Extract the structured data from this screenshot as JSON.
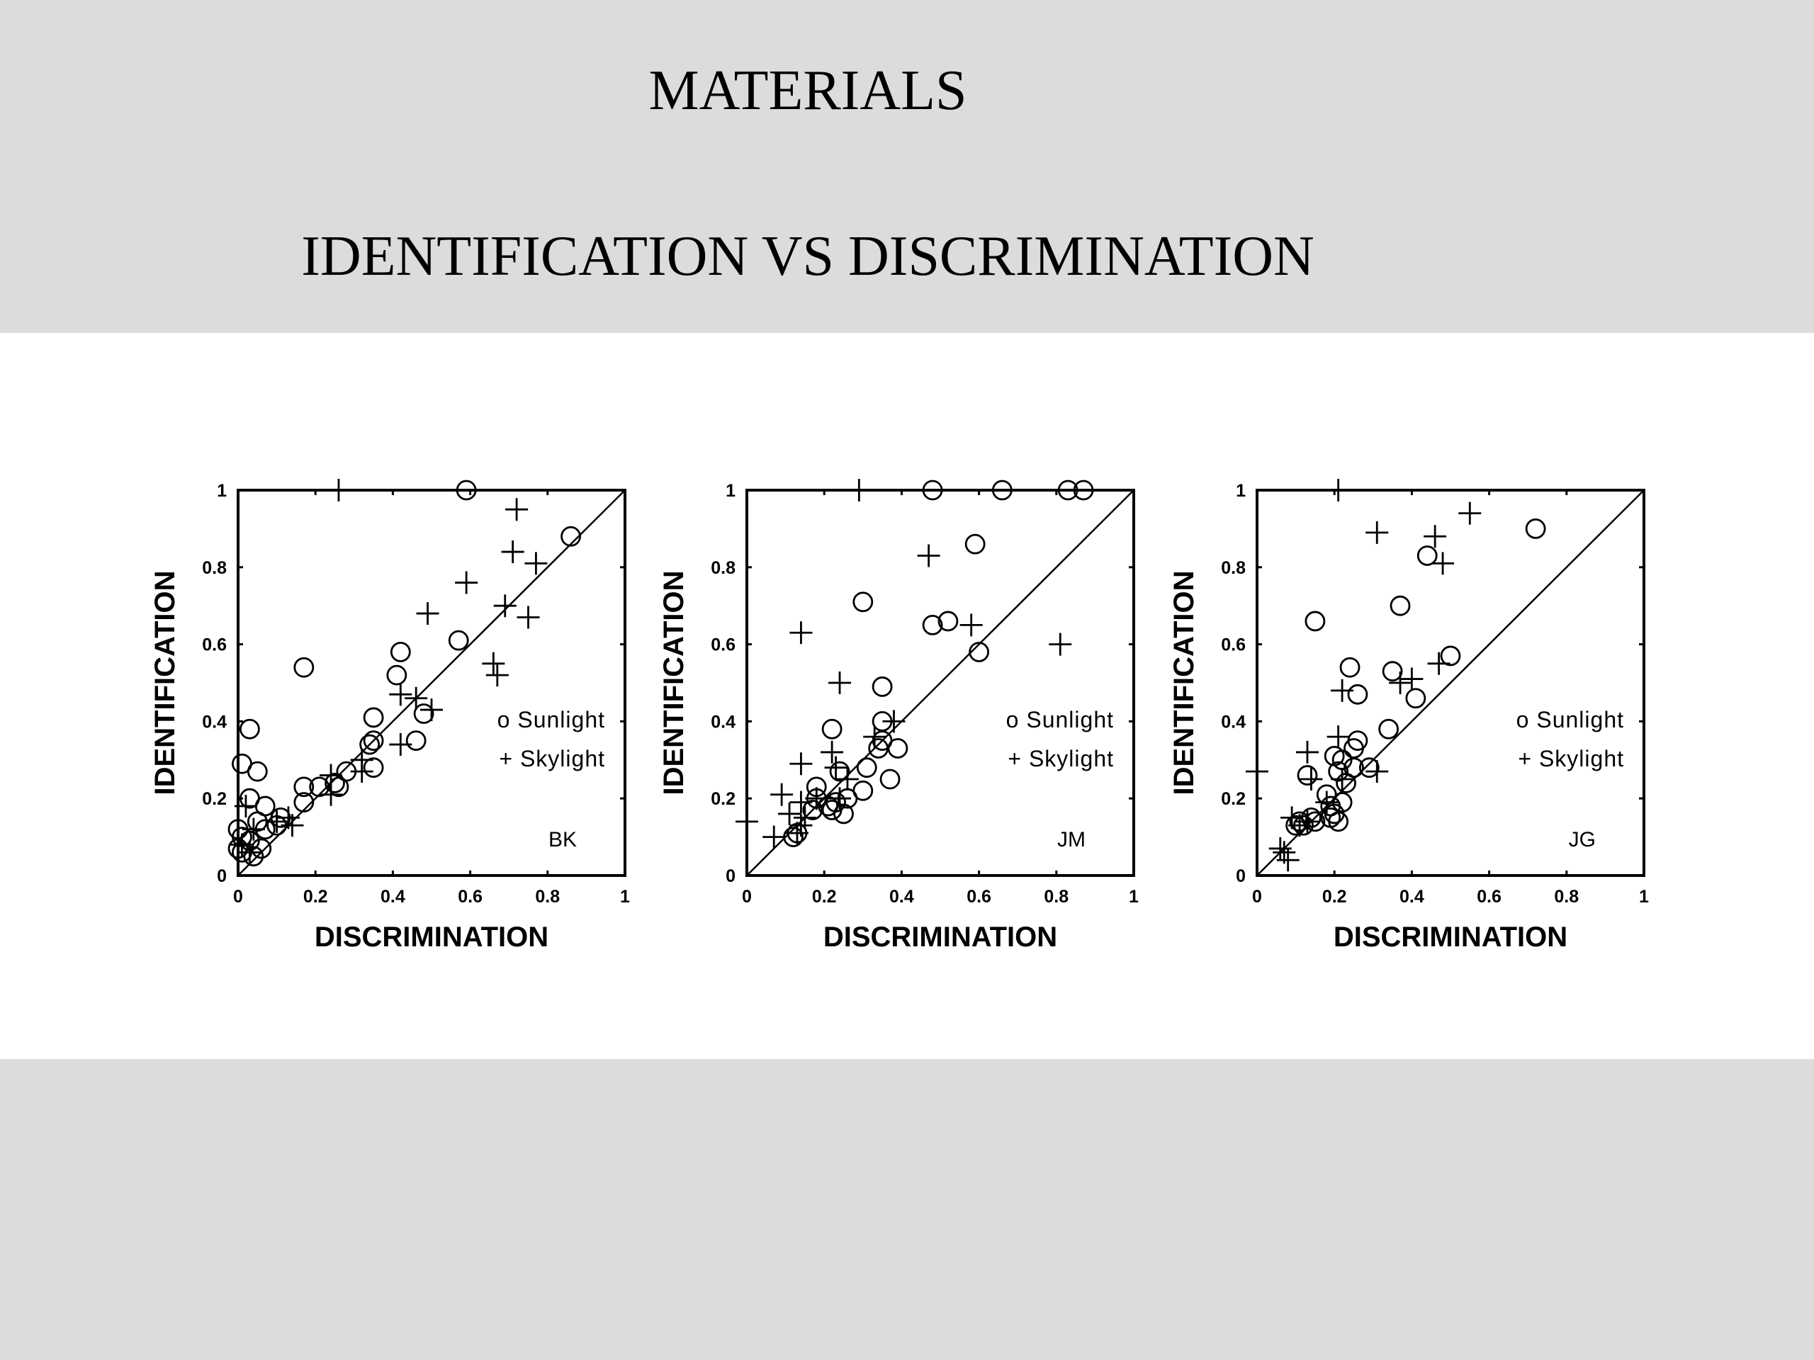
{
  "slide": {
    "title_line_1": "MATERIALS",
    "title_line_2": "IDENTIFICATION VS DISCRIMINATION"
  },
  "colors": {
    "header_band": "#dcdcdc",
    "figure_band": "#ffffff",
    "ink": "#000000"
  },
  "legend": {
    "sunlight_marker": "o",
    "sunlight": "Sunlight",
    "skylight_marker": "+",
    "skylight": "Skylight"
  },
  "chart_data": [
    {
      "type": "scatter",
      "panel_label": "BK",
      "xlabel": "DISCRIMINATION",
      "ylabel": "IDENTIFICATION",
      "xlim": [
        0,
        1
      ],
      "ylim": [
        0,
        1
      ],
      "ticks": [
        "0",
        "0.2",
        "0.4",
        "0.6",
        "0.8",
        "1"
      ],
      "diagonal": true,
      "grid": false,
      "legend_position": "right-middle",
      "series": [
        {
          "name": "Sunlight",
          "marker": "circle",
          "points": [
            [
              0.59,
              1.0
            ],
            [
              0.86,
              0.88
            ],
            [
              0.17,
              0.54
            ],
            [
              0.57,
              0.61
            ],
            [
              0.42,
              0.58
            ],
            [
              0.41,
              0.52
            ],
            [
              0.48,
              0.42
            ],
            [
              0.46,
              0.35
            ],
            [
              0.35,
              0.41
            ],
            [
              0.35,
              0.35
            ],
            [
              0.34,
              0.34
            ],
            [
              0.35,
              0.28
            ],
            [
              0.28,
              0.27
            ],
            [
              0.25,
              0.24
            ],
            [
              0.26,
              0.23
            ],
            [
              0.21,
              0.23
            ],
            [
              0.17,
              0.23
            ],
            [
              0.17,
              0.19
            ],
            [
              0.03,
              0.38
            ],
            [
              0.01,
              0.29
            ],
            [
              0.05,
              0.27
            ],
            [
              0.03,
              0.2
            ],
            [
              0.07,
              0.18
            ],
            [
              0.05,
              0.14
            ],
            [
              0.11,
              0.15
            ],
            [
              0.1,
              0.13
            ],
            [
              0.07,
              0.12
            ],
            [
              0.0,
              0.12
            ],
            [
              0.01,
              0.1
            ],
            [
              0.03,
              0.09
            ],
            [
              0.0,
              0.07
            ],
            [
              0.01,
              0.06
            ],
            [
              0.06,
              0.07
            ],
            [
              0.04,
              0.05
            ]
          ]
        },
        {
          "name": "Skylight",
          "marker": "plus",
          "points": [
            [
              0.26,
              1.0
            ],
            [
              0.72,
              0.95
            ],
            [
              0.71,
              0.84
            ],
            [
              0.77,
              0.81
            ],
            [
              0.59,
              0.76
            ],
            [
              0.69,
              0.7
            ],
            [
              0.75,
              0.67
            ],
            [
              0.49,
              0.68
            ],
            [
              0.66,
              0.55
            ],
            [
              0.67,
              0.52
            ],
            [
              0.42,
              0.47
            ],
            [
              0.46,
              0.46
            ],
            [
              0.5,
              0.43
            ],
            [
              0.42,
              0.34
            ],
            [
              0.32,
              0.3
            ],
            [
              0.32,
              0.27
            ],
            [
              0.24,
              0.26
            ],
            [
              0.24,
              0.21
            ],
            [
              0.13,
              0.15
            ],
            [
              0.14,
              0.13
            ],
            [
              0.1,
              0.14
            ],
            [
              0.02,
              0.18
            ],
            [
              0.04,
              0.12
            ],
            [
              0.01,
              0.08
            ],
            [
              0.03,
              0.06
            ]
          ]
        }
      ]
    },
    {
      "type": "scatter",
      "panel_label": "JM",
      "xlabel": "DISCRIMINATION",
      "ylabel": "IDENTIFICATION",
      "xlim": [
        0,
        1
      ],
      "ylim": [
        0,
        1
      ],
      "ticks": [
        "0",
        "0.2",
        "0.4",
        "0.6",
        "0.8",
        "1"
      ],
      "diagonal": true,
      "grid": false,
      "legend_position": "right-middle",
      "series": [
        {
          "name": "Sunlight",
          "marker": "circle",
          "points": [
            [
              0.48,
              1.0
            ],
            [
              0.66,
              1.0
            ],
            [
              0.83,
              1.0
            ],
            [
              0.87,
              1.0
            ],
            [
              0.59,
              0.86
            ],
            [
              0.3,
              0.71
            ],
            [
              0.48,
              0.65
            ],
            [
              0.52,
              0.66
            ],
            [
              0.6,
              0.58
            ],
            [
              0.35,
              0.49
            ],
            [
              0.35,
              0.4
            ],
            [
              0.22,
              0.38
            ],
            [
              0.35,
              0.35
            ],
            [
              0.34,
              0.33
            ],
            [
              0.39,
              0.33
            ],
            [
              0.31,
              0.28
            ],
            [
              0.24,
              0.27
            ],
            [
              0.37,
              0.25
            ],
            [
              0.18,
              0.23
            ],
            [
              0.3,
              0.22
            ],
            [
              0.18,
              0.2
            ],
            [
              0.23,
              0.19
            ],
            [
              0.21,
              0.18
            ],
            [
              0.26,
              0.2
            ],
            [
              0.17,
              0.17
            ],
            [
              0.22,
              0.17
            ],
            [
              0.25,
              0.16
            ],
            [
              0.13,
              0.11
            ],
            [
              0.12,
              0.1
            ]
          ]
        },
        {
          "name": "Skylight",
          "marker": "plus",
          "points": [
            [
              0.29,
              1.0
            ],
            [
              0.47,
              0.83
            ],
            [
              0.14,
              0.63
            ],
            [
              0.58,
              0.65
            ],
            [
              0.81,
              0.6
            ],
            [
              0.24,
              0.5
            ],
            [
              0.38,
              0.4
            ],
            [
              0.33,
              0.36
            ],
            [
              0.22,
              0.32
            ],
            [
              0.14,
              0.29
            ],
            [
              0.23,
              0.28
            ],
            [
              0.26,
              0.25
            ],
            [
              0.09,
              0.21
            ],
            [
              0.18,
              0.2
            ],
            [
              0.24,
              0.2
            ],
            [
              0.14,
              0.19
            ],
            [
              0.11,
              0.16
            ],
            [
              0.15,
              0.15
            ],
            [
              0.14,
              0.13
            ],
            [
              0.0,
              0.14
            ],
            [
              0.07,
              0.1
            ],
            [
              0.13,
              0.11
            ]
          ]
        }
      ]
    },
    {
      "type": "scatter",
      "panel_label": "JG",
      "xlabel": "DISCRIMINATION",
      "ylabel": "IDENTIFICATION",
      "xlim": [
        0,
        1
      ],
      "ylim": [
        0,
        1
      ],
      "ticks": [
        "0",
        "0.2",
        "0.4",
        "0.6",
        "0.8",
        "1"
      ],
      "diagonal": true,
      "grid": false,
      "legend_position": "right-middle",
      "series": [
        {
          "name": "Sunlight",
          "marker": "circle",
          "points": [
            [
              0.72,
              0.9
            ],
            [
              0.44,
              0.83
            ],
            [
              0.15,
              0.66
            ],
            [
              0.37,
              0.7
            ],
            [
              0.5,
              0.57
            ],
            [
              0.24,
              0.54
            ],
            [
              0.35,
              0.53
            ],
            [
              0.41,
              0.46
            ],
            [
              0.26,
              0.47
            ],
            [
              0.34,
              0.38
            ],
            [
              0.26,
              0.35
            ],
            [
              0.25,
              0.33
            ],
            [
              0.2,
              0.31
            ],
            [
              0.22,
              0.3
            ],
            [
              0.25,
              0.28
            ],
            [
              0.29,
              0.28
            ],
            [
              0.21,
              0.27
            ],
            [
              0.13,
              0.26
            ],
            [
              0.23,
              0.24
            ],
            [
              0.18,
              0.21
            ],
            [
              0.22,
              0.19
            ],
            [
              0.19,
              0.18
            ],
            [
              0.2,
              0.16
            ],
            [
              0.19,
              0.15
            ],
            [
              0.21,
              0.14
            ],
            [
              0.14,
              0.15
            ],
            [
              0.11,
              0.14
            ],
            [
              0.15,
              0.14
            ],
            [
              0.1,
              0.13
            ],
            [
              0.12,
              0.13
            ]
          ]
        },
        {
          "name": "Skylight",
          "marker": "plus",
          "points": [
            [
              0.21,
              1.0
            ],
            [
              0.31,
              0.89
            ],
            [
              0.55,
              0.94
            ],
            [
              0.46,
              0.88
            ],
            [
              0.48,
              0.81
            ],
            [
              0.47,
              0.55
            ],
            [
              0.4,
              0.51
            ],
            [
              0.37,
              0.5
            ],
            [
              0.22,
              0.48
            ],
            [
              0.21,
              0.36
            ],
            [
              0.13,
              0.32
            ],
            [
              0.31,
              0.27
            ],
            [
              0.0,
              0.27
            ],
            [
              0.14,
              0.25
            ],
            [
              0.22,
              0.25
            ],
            [
              0.18,
              0.19
            ],
            [
              0.09,
              0.15
            ],
            [
              0.11,
              0.13
            ],
            [
              0.13,
              0.14
            ],
            [
              0.06,
              0.07
            ],
            [
              0.07,
              0.06
            ],
            [
              0.08,
              0.04
            ]
          ]
        }
      ]
    }
  ]
}
